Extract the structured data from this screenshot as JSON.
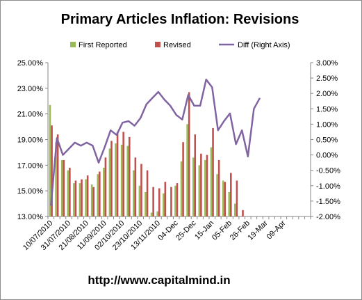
{
  "chart_data": {
    "type": "bar+line",
    "title": "Primary Articles Inflation: Revisions",
    "footer": "http://www.capitalmind.in",
    "legend_position": "top",
    "grid": false,
    "x_tick_labels": [
      "10/07/2010",
      "31/07/2010",
      "21/08/2010",
      "11/09/2010",
      "02/10/2010",
      "23/10/2010",
      "13/11/2010",
      "04-Dec",
      "25-Dec",
      "15-Jan",
      "05-Feb",
      "26-Feb",
      "19-Mar",
      "09-Apr"
    ],
    "left_axis": {
      "ylim": [
        13.0,
        25.0
      ],
      "ticks": [
        "13.00%",
        "15.00%",
        "17.00%",
        "19.00%",
        "21.00%",
        "23.00%",
        "25.00%"
      ]
    },
    "right_axis": {
      "ylim": [
        -2.0,
        3.0
      ],
      "ticks": [
        "-2.00%",
        "-1.50%",
        "-1.00%",
        "-0.50%",
        "0.00%",
        "0.50%",
        "1.00%",
        "1.50%",
        "2.00%",
        "2.50%",
        "3.00%"
      ]
    },
    "series": [
      {
        "name": "First Reported",
        "kind": "bar",
        "axis": "left",
        "color": "#9bbb59",
        "values": [
          21.7,
          18.8,
          17.4,
          16.6,
          15.6,
          15.6,
          15.9,
          15.5,
          16.3,
          16.8,
          18.3,
          18.7,
          18.6,
          18.5,
          16.6,
          15.4,
          14.9,
          13.3,
          13.4,
          14.8,
          13.0,
          15.4,
          17.3,
          20.2,
          17.6,
          17.0,
          17.4,
          18.4,
          16.3,
          15.8,
          14.9,
          14.0,
          null,
          null,
          null,
          null,
          null,
          null,
          null,
          null,
          null,
          null,
          null,
          null
        ]
      },
      {
        "name": "Revised",
        "kind": "bar",
        "axis": "left",
        "color": "#c0504d",
        "values": [
          20.1,
          19.4,
          17.4,
          16.8,
          15.8,
          15.9,
          16.2,
          15.3,
          16.5,
          17.6,
          18.9,
          19.6,
          19.6,
          19.2,
          17.6,
          17.1,
          16.6,
          15.3,
          15.2,
          15.7,
          15.3,
          15.6,
          18.8,
          22.7,
          19.4,
          17.9,
          17.8,
          19.9,
          17.4,
          15.7,
          16.4,
          15.8,
          13.5,
          null,
          null,
          null,
          null,
          null,
          null,
          null,
          null,
          null,
          null,
          null
        ]
      },
      {
        "name": "Diff (Right  Axis)",
        "kind": "line",
        "axis": "right",
        "color": "#8064a2",
        "values": [
          -1.65,
          0.55,
          0.0,
          0.2,
          0.4,
          0.3,
          0.4,
          0.3,
          -0.25,
          0.25,
          0.8,
          0.65,
          1.05,
          1.1,
          0.95,
          1.2,
          1.65,
          1.85,
          2.05,
          1.8,
          1.6,
          1.3,
          1.15,
          1.95,
          1.6,
          1.6,
          2.45,
          2.2,
          0.8,
          1.1,
          1.35,
          0.35,
          0.8,
          -0.05,
          1.5,
          1.85,
          null,
          null,
          null,
          null,
          null,
          null,
          null,
          null
        ]
      }
    ]
  }
}
